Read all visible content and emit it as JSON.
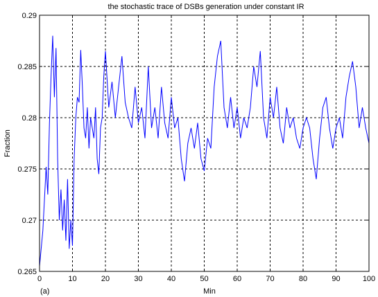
{
  "chart_data": {
    "type": "line",
    "title": "the stochastic trace of DSBs generation under constant IR",
    "xlabel": "Min",
    "ylabel": "Fraction",
    "panel_label": "(a)",
    "xlim": [
      0,
      100
    ],
    "ylim": [
      0.265,
      0.29
    ],
    "xticks": [
      0,
      10,
      20,
      30,
      40,
      50,
      60,
      70,
      80,
      90,
      100
    ],
    "xtick_labels": [
      "0",
      "10",
      "20",
      "30",
      "40",
      "50",
      "60",
      "70",
      "80",
      "90",
      "100"
    ],
    "yticks": [
      0.265,
      0.27,
      0.275,
      0.28,
      0.285,
      0.29
    ],
    "ytick_labels": [
      "0.265",
      "0.27",
      "0.275",
      "0.28",
      "0.285",
      "0.29"
    ],
    "grid": true,
    "line_color": "#0000ff",
    "series": [
      {
        "x": [
          0,
          1,
          2,
          2.5,
          3,
          3.5,
          4,
          4.5,
          5,
          5.5,
          6,
          6.5,
          7,
          7.5,
          8,
          8.5,
          9,
          9.5,
          10,
          10.5,
          11,
          11.5,
          12,
          12.5,
          13,
          13.5,
          14,
          14.5,
          15,
          15.5,
          16,
          16.5,
          17,
          17.5,
          18,
          18.5,
          19,
          19.5,
          20,
          21,
          22,
          23,
          24,
          25,
          26,
          27,
          28,
          29,
          30,
          31,
          32,
          33,
          34,
          35,
          36,
          37,
          38,
          39,
          40,
          41,
          42,
          43,
          44,
          45,
          46,
          47,
          48,
          49,
          50,
          51,
          52,
          53,
          54,
          55,
          56,
          57,
          58,
          59,
          60,
          61,
          62,
          63,
          64,
          65,
          66,
          67,
          68,
          69,
          70,
          71,
          72,
          73,
          74,
          75,
          76,
          77,
          78,
          79,
          80,
          81,
          82,
          83,
          84,
          85,
          86,
          87,
          88,
          89,
          90,
          91,
          92,
          93,
          94,
          95,
          96,
          97,
          98,
          99,
          100
        ],
        "y": [
          0.2655,
          0.269,
          0.2752,
          0.2725,
          0.2795,
          0.284,
          0.288,
          0.282,
          0.2868,
          0.276,
          0.27,
          0.273,
          0.269,
          0.272,
          0.268,
          0.274,
          0.2672,
          0.27,
          0.2675,
          0.276,
          0.28,
          0.282,
          0.2815,
          0.2866,
          0.283,
          0.279,
          0.278,
          0.281,
          0.277,
          0.28,
          0.279,
          0.278,
          0.281,
          0.276,
          0.2745,
          0.279,
          0.28,
          0.284,
          0.2865,
          0.281,
          0.2835,
          0.28,
          0.283,
          0.286,
          0.2815,
          0.28,
          0.279,
          0.283,
          0.2795,
          0.281,
          0.278,
          0.285,
          0.279,
          0.281,
          0.278,
          0.283,
          0.2795,
          0.278,
          0.282,
          0.279,
          0.28,
          0.276,
          0.2738,
          0.2775,
          0.279,
          0.277,
          0.2795,
          0.276,
          0.2748,
          0.278,
          0.277,
          0.283,
          0.286,
          0.2875,
          0.281,
          0.279,
          0.282,
          0.279,
          0.281,
          0.278,
          0.28,
          0.279,
          0.281,
          0.285,
          0.283,
          0.2865,
          0.28,
          0.278,
          0.282,
          0.28,
          0.283,
          0.279,
          0.2775,
          0.281,
          0.279,
          0.28,
          0.278,
          0.277,
          0.279,
          0.28,
          0.279,
          0.276,
          0.274,
          0.278,
          0.281,
          0.282,
          0.279,
          0.277,
          0.279,
          0.28,
          0.278,
          0.282,
          0.284,
          0.2855,
          0.283,
          0.279,
          0.281,
          0.279,
          0.2775
        ]
      }
    ]
  }
}
